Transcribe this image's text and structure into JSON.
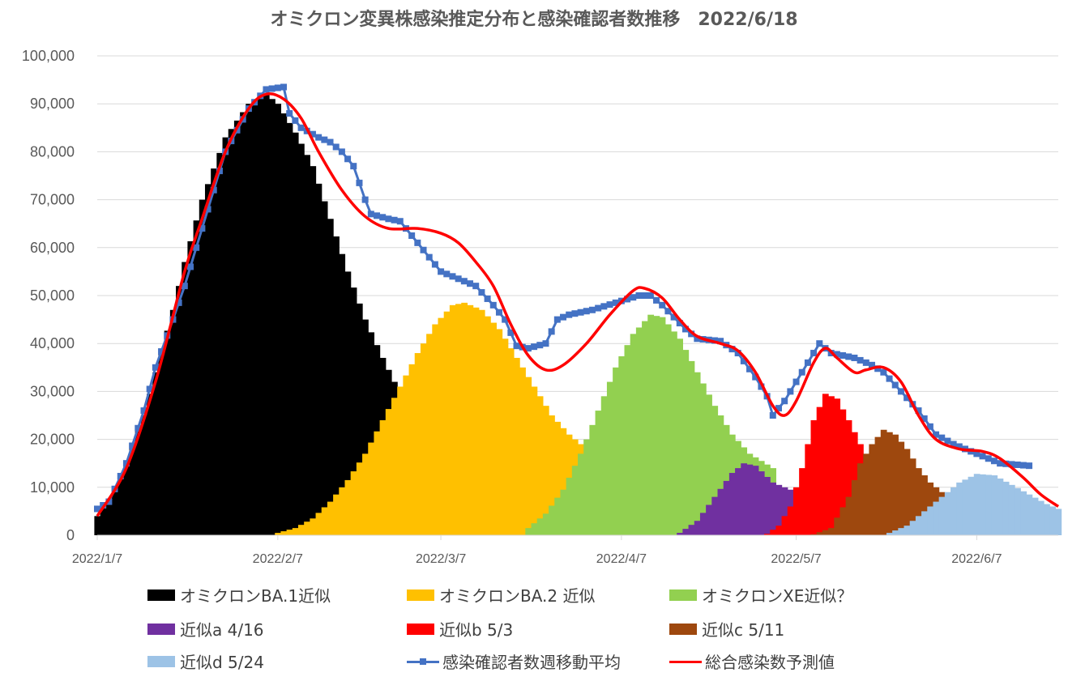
{
  "chart_data": {
    "type": "bar",
    "title": "オミクロン変異株感染推定分布と感染確認者数推移　2022/6/18",
    "xlabel": "",
    "ylabel": "",
    "x_unit": "days since 2022/1/7",
    "xlim": [
      0,
      165
    ],
    "ylim": [
      0,
      100000
    ],
    "grid": true,
    "legend_position": "bottom",
    "y_ticks": [
      "0",
      "10,000",
      "20,000",
      "30,000",
      "40,000",
      "50,000",
      "60,000",
      "70,000",
      "80,000",
      "90,000",
      "100,000"
    ],
    "y_tick_values": [
      0,
      10000,
      20000,
      30000,
      40000,
      50000,
      60000,
      70000,
      80000,
      90000,
      100000
    ],
    "x_ticks": [
      {
        "day": 0,
        "label": "2022/1/7"
      },
      {
        "day": 31,
        "label": "2022/2/7"
      },
      {
        "day": 59,
        "label": "2022/3/7"
      },
      {
        "day": 90,
        "label": "2022/4/7"
      },
      {
        "day": 120,
        "label": "2022/5/7"
      },
      {
        "day": 151,
        "label": "2022/6/7"
      }
    ],
    "bar_series": [
      {
        "name": "オミクロンBA.1近似",
        "color": "#000000",
        "points": [
          [
            0,
            4000
          ],
          [
            3,
            9000
          ],
          [
            5,
            15000
          ],
          [
            8,
            25000
          ],
          [
            10,
            34000
          ],
          [
            13,
            47000
          ],
          [
            15,
            57000
          ],
          [
            18,
            70000
          ],
          [
            22,
            83000
          ],
          [
            26,
            90000
          ],
          [
            29,
            92000
          ],
          [
            31,
            90000
          ],
          [
            34,
            84000
          ],
          [
            37,
            77000
          ],
          [
            40,
            66000
          ],
          [
            43,
            55000
          ],
          [
            46,
            45000
          ],
          [
            49,
            37000
          ],
          [
            51,
            32000
          ],
          [
            54,
            24000
          ],
          [
            57,
            16000
          ],
          [
            60,
            10000
          ],
          [
            62,
            7000
          ]
        ]
      },
      {
        "name": "オミクロンBA.2 近似",
        "color": "#FFC000",
        "points": [
          [
            31,
            500
          ],
          [
            34,
            1500
          ],
          [
            37,
            3500
          ],
          [
            40,
            7000
          ],
          [
            43,
            11500
          ],
          [
            46,
            17000
          ],
          [
            49,
            24000
          ],
          [
            52,
            31000
          ],
          [
            55,
            38000
          ],
          [
            58,
            44000
          ],
          [
            61,
            48000
          ],
          [
            63,
            48500
          ],
          [
            66,
            47000
          ],
          [
            69,
            43000
          ],
          [
            72,
            37000
          ],
          [
            75,
            31000
          ],
          [
            78,
            25000
          ],
          [
            81,
            21000
          ],
          [
            83,
            19000
          ]
        ]
      },
      {
        "name": "オミクロンXE近似？",
        "color": "#92D050",
        "points": [
          [
            74,
            1500
          ],
          [
            77,
            4500
          ],
          [
            80,
            9500
          ],
          [
            83,
            17000
          ],
          [
            86,
            26000
          ],
          [
            89,
            35000
          ],
          [
            92,
            42000
          ],
          [
            95,
            46000
          ],
          [
            97,
            45500
          ],
          [
            100,
            41000
          ],
          [
            103,
            34000
          ],
          [
            106,
            27000
          ],
          [
            109,
            21000
          ],
          [
            112,
            17000
          ],
          [
            116,
            14000
          ]
        ]
      },
      {
        "name": "近似a 4/16",
        "color": "#7030A0",
        "points": [
          [
            100,
            500
          ],
          [
            103,
            3000
          ],
          [
            106,
            8000
          ],
          [
            109,
            13000
          ],
          [
            111,
            15000
          ],
          [
            113,
            14500
          ],
          [
            116,
            11000
          ],
          [
            119,
            9500
          ]
        ]
      },
      {
        "name": "近似b 5/3",
        "color": "#FF0000",
        "points": [
          [
            115,
            300
          ],
          [
            117,
            2000
          ],
          [
            119,
            6000
          ],
          [
            121,
            14000
          ],
          [
            123,
            24000
          ],
          [
            125,
            29500
          ],
          [
            127,
            28500
          ],
          [
            129,
            24000
          ],
          [
            131,
            19000
          ]
        ]
      },
      {
        "name": "近似c 5/11",
        "color": "#9E480E",
        "points": [
          [
            123,
            200
          ],
          [
            126,
            1500
          ],
          [
            129,
            8000
          ],
          [
            131,
            15000
          ],
          [
            133,
            19000
          ],
          [
            135,
            22000
          ],
          [
            137,
            21000
          ],
          [
            139,
            18000
          ],
          [
            141,
            14000
          ],
          [
            143,
            11000
          ],
          [
            145,
            9000
          ]
        ]
      },
      {
        "name": "近似d 5/24",
        "color": "#9DC3E6",
        "points": [
          [
            136,
            500
          ],
          [
            139,
            2000
          ],
          [
            142,
            5000
          ],
          [
            145,
            8000
          ],
          [
            148,
            11000
          ],
          [
            151,
            12800
          ],
          [
            154,
            12500
          ],
          [
            157,
            10500
          ],
          [
            160,
            8500
          ],
          [
            163,
            6500
          ],
          [
            165,
            5500
          ]
        ]
      }
    ],
    "line_series": [
      {
        "name": "感染確認者数週移動平均",
        "color": "#4472C4",
        "markers": true,
        "points": [
          [
            0,
            5500
          ],
          [
            2,
            7000
          ],
          [
            5,
            15000
          ],
          [
            8,
            26000
          ],
          [
            10,
            35000
          ],
          [
            13,
            45000
          ],
          [
            15,
            52000
          ],
          [
            18,
            64000
          ],
          [
            22,
            80000
          ],
          [
            26,
            89000
          ],
          [
            29,
            93000
          ],
          [
            32,
            93500
          ],
          [
            33,
            88000
          ],
          [
            35,
            85000
          ],
          [
            38,
            83000
          ],
          [
            40,
            82000
          ],
          [
            42,
            80000
          ],
          [
            44,
            77000
          ],
          [
            46,
            70000
          ],
          [
            47,
            67000
          ],
          [
            50,
            66000
          ],
          [
            52,
            65500
          ],
          [
            55,
            61000
          ],
          [
            59,
            55000
          ],
          [
            62,
            53500
          ],
          [
            65,
            52000
          ],
          [
            68,
            48000
          ],
          [
            70,
            45000
          ],
          [
            72,
            39500
          ],
          [
            74,
            39000
          ],
          [
            77,
            40000
          ],
          [
            79,
            45000
          ],
          [
            81,
            46000
          ],
          [
            85,
            47000
          ],
          [
            89,
            48500
          ],
          [
            93,
            50000
          ],
          [
            95,
            50000
          ],
          [
            97,
            48000
          ],
          [
            101,
            43000
          ],
          [
            103,
            41000
          ],
          [
            107,
            40500
          ],
          [
            110,
            38000
          ],
          [
            113,
            33000
          ],
          [
            115,
            29000
          ],
          [
            116,
            25000
          ],
          [
            118,
            28000
          ],
          [
            120,
            32000
          ],
          [
            123,
            38000
          ],
          [
            124,
            40000
          ],
          [
            126,
            38000
          ],
          [
            130,
            37000
          ],
          [
            133,
            35500
          ],
          [
            135,
            34000
          ],
          [
            138,
            30000
          ],
          [
            141,
            26000
          ],
          [
            144,
            21000
          ],
          [
            147,
            19000
          ],
          [
            151,
            17000
          ],
          [
            155,
            15000
          ],
          [
            160,
            14500
          ]
        ]
      },
      {
        "name": "総合感染数予測値",
        "color": "#FF0000",
        "markers": false,
        "points": [
          [
            0,
            4000
          ],
          [
            5,
            14000
          ],
          [
            10,
            32000
          ],
          [
            15,
            55000
          ],
          [
            18,
            66000
          ],
          [
            22,
            80000
          ],
          [
            26,
            89000
          ],
          [
            29,
            92000
          ],
          [
            32,
            91000
          ],
          [
            35,
            87000
          ],
          [
            38,
            80000
          ],
          [
            42,
            72000
          ],
          [
            46,
            66500
          ],
          [
            50,
            64000
          ],
          [
            55,
            64000
          ],
          [
            59,
            63000
          ],
          [
            62,
            61000
          ],
          [
            65,
            57000
          ],
          [
            68,
            52000
          ],
          [
            71,
            44000
          ],
          [
            74,
            37500
          ],
          [
            77,
            34500
          ],
          [
            80,
            35500
          ],
          [
            84,
            40000
          ],
          [
            88,
            46000
          ],
          [
            92,
            51000
          ],
          [
            94,
            51500
          ],
          [
            97,
            49500
          ],
          [
            100,
            45000
          ],
          [
            103,
            41500
          ],
          [
            107,
            40000
          ],
          [
            110,
            38500
          ],
          [
            113,
            34000
          ],
          [
            116,
            27000
          ],
          [
            118,
            25000
          ],
          [
            120,
            28000
          ],
          [
            123,
            36000
          ],
          [
            125,
            39000
          ],
          [
            127,
            37000
          ],
          [
            130,
            34000
          ],
          [
            132,
            34500
          ],
          [
            135,
            35000
          ],
          [
            138,
            32000
          ],
          [
            141,
            25000
          ],
          [
            144,
            20000
          ],
          [
            148,
            18000
          ],
          [
            152,
            17500
          ],
          [
            155,
            16000
          ],
          [
            159,
            12000
          ],
          [
            162,
            8500
          ],
          [
            165,
            6000
          ]
        ]
      }
    ]
  }
}
